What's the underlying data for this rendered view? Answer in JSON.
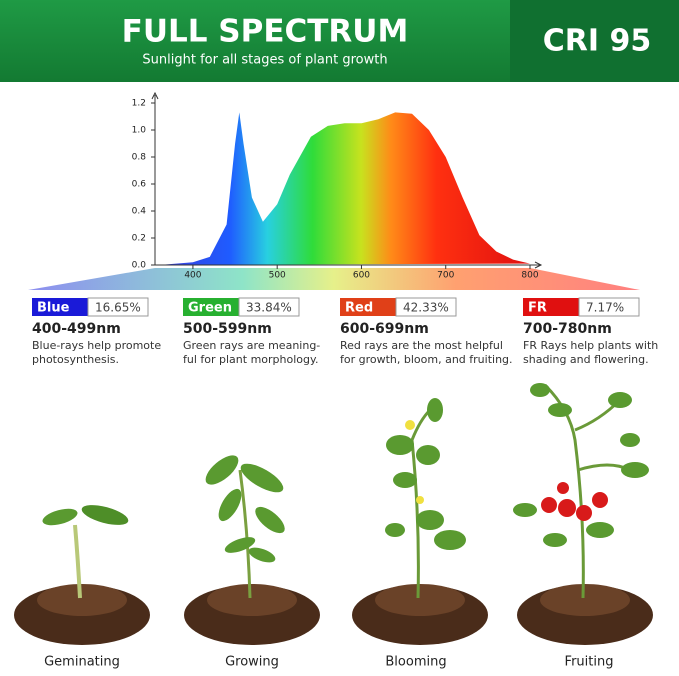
{
  "header": {
    "title": "FULL SPECTRUM",
    "subtitle": "Sunlight for all stages of plant growth",
    "badge": "CRI 95"
  },
  "chart_data": {
    "type": "area",
    "x": [
      360,
      380,
      400,
      420,
      440,
      450,
      455,
      460,
      470,
      483,
      500,
      515,
      540,
      560,
      580,
      600,
      620,
      640,
      660,
      680,
      700,
      720,
      740,
      760,
      780,
      800
    ],
    "values": [
      0,
      0.01,
      0.02,
      0.06,
      0.3,
      0.9,
      1.13,
      0.9,
      0.5,
      0.32,
      0.45,
      0.67,
      0.95,
      1.03,
      1.05,
      1.05,
      1.08,
      1.13,
      1.12,
      1.0,
      0.8,
      0.5,
      0.22,
      0.1,
      0.04,
      0.01
    ],
    "xlim": [
      355,
      800
    ],
    "xticks": [
      400,
      500,
      600,
      700,
      800
    ],
    "ylim": [
      0,
      1.2
    ],
    "yticks": [
      {
        "value": 0,
        "label": "0.0"
      },
      0.2,
      0.4,
      0.6,
      0.8,
      {
        "value": 1,
        "label": "1.0"
      },
      1.2
    ]
  },
  "bands": [
    {
      "name": "Blue",
      "share": "16.65%",
      "range": "400-499nm",
      "description": [
        "Blue-rays help promote",
        "photosynthesis."
      ]
    },
    {
      "name": "Green",
      "share": "33.84%",
      "range": "500-599nm",
      "description": [
        "Green rays are meaning-",
        "ful for plant morphology."
      ]
    },
    {
      "name": "Red",
      "share": "42.33%",
      "range": "600-699nm",
      "description": [
        "Red rays are the most helpful",
        "for growth, bloom, and fruiting."
      ]
    },
    {
      "name": "FR",
      "share": "7.17%",
      "range": "700-780nm",
      "description": [
        "FR Rays help plants with",
        "shading and flowering."
      ]
    }
  ],
  "stages": [
    "Geminating",
    "Growing",
    "Blooming",
    "Fruiting"
  ]
}
